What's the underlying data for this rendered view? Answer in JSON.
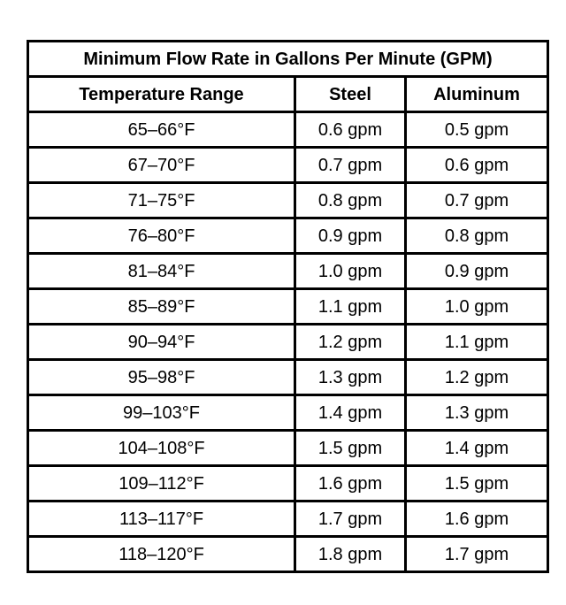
{
  "chart_data": {
    "type": "table",
    "title": "Minimum Flow Rate in Gallons Per Minute (GPM)",
    "columns": [
      "Temperature Range",
      "Steel",
      "Aluminum"
    ],
    "rows": [
      [
        "65–66°F",
        "0.6 gpm",
        "0.5 gpm"
      ],
      [
        "67–70°F",
        "0.7 gpm",
        "0.6 gpm"
      ],
      [
        "71–75°F",
        "0.8 gpm",
        "0.7 gpm"
      ],
      [
        "76–80°F",
        "0.9 gpm",
        "0.8 gpm"
      ],
      [
        "81–84°F",
        "1.0 gpm",
        "0.9 gpm"
      ],
      [
        "85–89°F",
        "1.1 gpm",
        "1.0 gpm"
      ],
      [
        "90–94°F",
        "1.2 gpm",
        "1.1 gpm"
      ],
      [
        "95–98°F",
        "1.3 gpm",
        "1.2 gpm"
      ],
      [
        "99–103°F",
        "1.4 gpm",
        "1.3 gpm"
      ],
      [
        "104–108°F",
        "1.5 gpm",
        "1.4 gpm"
      ],
      [
        "109–112°F",
        "1.6 gpm",
        "1.5 gpm"
      ],
      [
        "113–117°F",
        "1.7 gpm",
        "1.6 gpm"
      ],
      [
        "118–120°F",
        "1.8 gpm",
        "1.7 gpm"
      ]
    ],
    "border_color": "#000000",
    "background_color": "#ffffff"
  }
}
